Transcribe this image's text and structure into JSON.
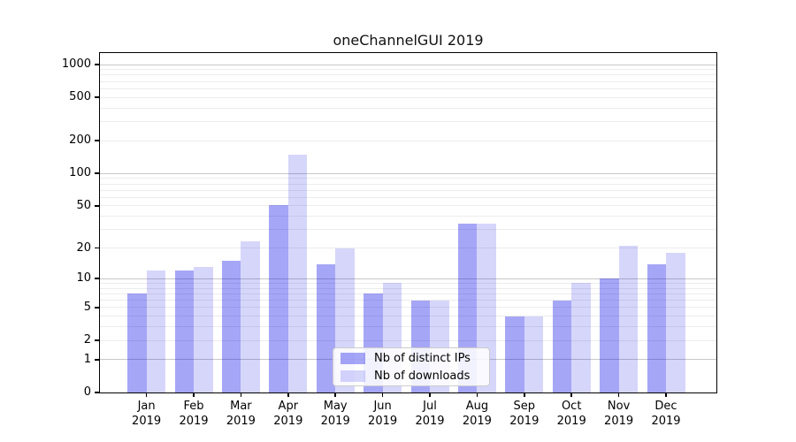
{
  "chart_data": {
    "type": "bar",
    "title": "oneChannelGUI 2019",
    "categories": [
      "Jan",
      "Feb",
      "Mar",
      "Apr",
      "May",
      "Jun",
      "Jul",
      "Aug",
      "Sep",
      "Oct",
      "Nov",
      "Dec"
    ],
    "year": "2019",
    "series": [
      {
        "name": "Nb of distinct IPs",
        "values": [
          7,
          12,
          15,
          51,
          14,
          7,
          6,
          34,
          4,
          6,
          10,
          14
        ],
        "color": "rgba(0,0,230,0.35)"
      },
      {
        "name": "Nb of downloads",
        "values": [
          12,
          13,
          23,
          150,
          20,
          9,
          6,
          34,
          4,
          9,
          21,
          18
        ],
        "color": "rgba(0,0,230,0.16)"
      }
    ],
    "xlabel": "",
    "ylabel": "",
    "y_scale": "log1p",
    "ylim": [
      0,
      1100
    ],
    "y_tick_labels": [
      0,
      1,
      2,
      5,
      10,
      20,
      50,
      100,
      200,
      500,
      1000
    ],
    "grid": {
      "on": true,
      "major_values": [
        1,
        10,
        100,
        1000
      ],
      "minor_values": [
        2,
        3,
        4,
        5,
        6,
        7,
        8,
        9,
        20,
        30,
        40,
        50,
        60,
        70,
        80,
        90,
        200,
        300,
        400,
        500,
        600,
        700,
        800,
        900
      ],
      "major_color": "#c8c8c8",
      "minor_color": "#ececec"
    },
    "legend_position": "inside-bottom-center",
    "colors": {
      "distinct_ips": "rgba(0,0,230,0.35)",
      "downloads": "rgba(0,0,230,0.16)",
      "axis": "#000000"
    }
  }
}
